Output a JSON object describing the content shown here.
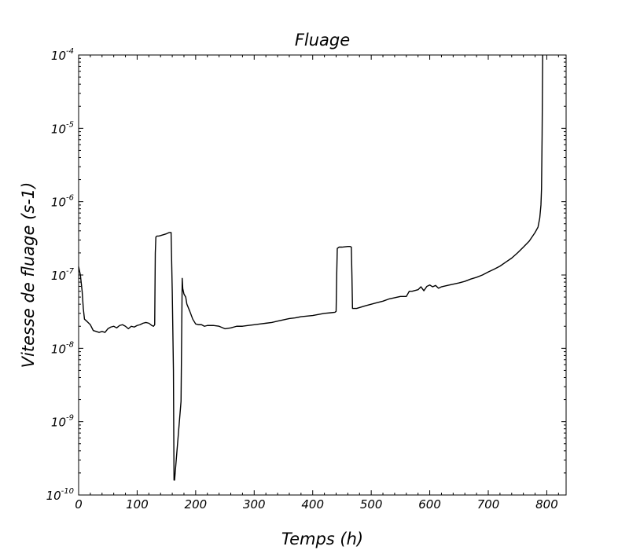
{
  "chart_data": {
    "type": "line",
    "title": "Fluage",
    "xlabel": "Temps (h)",
    "ylabel": "Vitesse de fluage (s-1)",
    "xlim": [
      0,
      833
    ],
    "ylim": [
      1e-10,
      0.0001
    ],
    "yscale": "log",
    "grid": false,
    "legend": "none",
    "x_ticks": [
      0,
      100,
      200,
      300,
      400,
      500,
      600,
      700,
      800
    ],
    "x_tick_labels": [
      "0",
      "100",
      "200",
      "300",
      "400",
      "500",
      "600",
      "700",
      "800"
    ],
    "y_ticks": [
      1e-10,
      1e-09,
      1e-08,
      1e-07,
      1e-06,
      1e-05,
      0.0001
    ],
    "y_tick_labels": [
      {
        "base": "10",
        "exp": "-10"
      },
      {
        "base": "10",
        "exp": "-9"
      },
      {
        "base": "10",
        "exp": "-8"
      },
      {
        "base": "10",
        "exp": "-7"
      },
      {
        "base": "10",
        "exp": "-6"
      },
      {
        "base": "10",
        "exp": "-5"
      },
      {
        "base": "10",
        "exp": "-4"
      }
    ],
    "line_color": "#000000",
    "series": [
      {
        "x": [
          0,
          3,
          6,
          8,
          10,
          15,
          20,
          25,
          30,
          35,
          40,
          45,
          50,
          55,
          60,
          65,
          70,
          75,
          80,
          85,
          90,
          95,
          100,
          105,
          110,
          115,
          120,
          125,
          128,
          130,
          131,
          132,
          134,
          137,
          140,
          145,
          150,
          155,
          158,
          160,
          162,
          163,
          164,
          175,
          177,
          178,
          180,
          183,
          185,
          190,
          195,
          200,
          205,
          210,
          215,
          220,
          230,
          240,
          250,
          260,
          270,
          280,
          290,
          300,
          310,
          320,
          330,
          340,
          350,
          360,
          370,
          380,
          390,
          400,
          410,
          420,
          430,
          438,
          440,
          441,
          442,
          445,
          450,
          460,
          464,
          466,
          467,
          468,
          475,
          480,
          490,
          500,
          510,
          520,
          530,
          540,
          550,
          560,
          565,
          570,
          580,
          585,
          590,
          595,
          600,
          605,
          610,
          615,
          620,
          630,
          640,
          650,
          660,
          670,
          680,
          690,
          700,
          710,
          720,
          730,
          740,
          750,
          760,
          770,
          780,
          785,
          788,
          790,
          791,
          792,
          793
        ],
        "y": [
          1.3e-07,
          1e-07,
          6e-08,
          3.5e-08,
          2.5e-08,
          2.3e-08,
          2.1e-08,
          1.75e-08,
          1.7e-08,
          1.65e-08,
          1.7e-08,
          1.65e-08,
          1.85e-08,
          1.95e-08,
          2e-08,
          1.9e-08,
          2.05e-08,
          2.1e-08,
          2e-08,
          1.85e-08,
          2e-08,
          1.95e-08,
          2.05e-08,
          2.1e-08,
          2.2e-08,
          2.25e-08,
          2.2e-08,
          2.05e-08,
          2e-08,
          2.1e-08,
          2e-07,
          3.3e-07,
          3.4e-07,
          3.4e-07,
          3.45e-07,
          3.55e-07,
          3.65e-07,
          3.8e-07,
          3.8e-07,
          6e-08,
          5e-09,
          1.6e-10,
          1.6e-10,
          1.9e-09,
          9e-08,
          6.5e-08,
          5.5e-08,
          5e-08,
          4e-08,
          3.2e-08,
          2.5e-08,
          2.15e-08,
          2.1e-08,
          2.1e-08,
          2e-08,
          2.05e-08,
          2.05e-08,
          2e-08,
          1.85e-08,
          1.9e-08,
          2e-08,
          2e-08,
          2.05e-08,
          2.1e-08,
          2.15e-08,
          2.2e-08,
          2.25e-08,
          2.35e-08,
          2.45e-08,
          2.55e-08,
          2.6e-08,
          2.7e-08,
          2.75e-08,
          2.8e-08,
          2.9e-08,
          3e-08,
          3.05e-08,
          3.1e-08,
          3.2e-08,
          1e-07,
          2.3e-07,
          2.4e-07,
          2.4e-07,
          2.45e-07,
          2.45e-07,
          2.4e-07,
          1e-07,
          3.5e-08,
          3.5e-08,
          3.6e-08,
          3.8e-08,
          4e-08,
          4.2e-08,
          4.4e-08,
          4.7e-08,
          4.9e-08,
          5.1e-08,
          5.1e-08,
          6e-08,
          6e-08,
          6.3e-08,
          6.9e-08,
          6.1e-08,
          7e-08,
          7.3e-08,
          6.9e-08,
          7.2e-08,
          6.6e-08,
          6.9e-08,
          7.2e-08,
          7.5e-08,
          7.8e-08,
          8.2e-08,
          8.8e-08,
          9.3e-08,
          1e-07,
          1.1e-07,
          1.2e-07,
          1.32e-07,
          1.5e-07,
          1.7e-07,
          2e-07,
          2.4e-07,
          2.9e-07,
          3.8e-07,
          4.5e-07,
          6e-07,
          9e-07,
          1.5e-06,
          8e-06,
          0.0001
        ]
      }
    ]
  }
}
